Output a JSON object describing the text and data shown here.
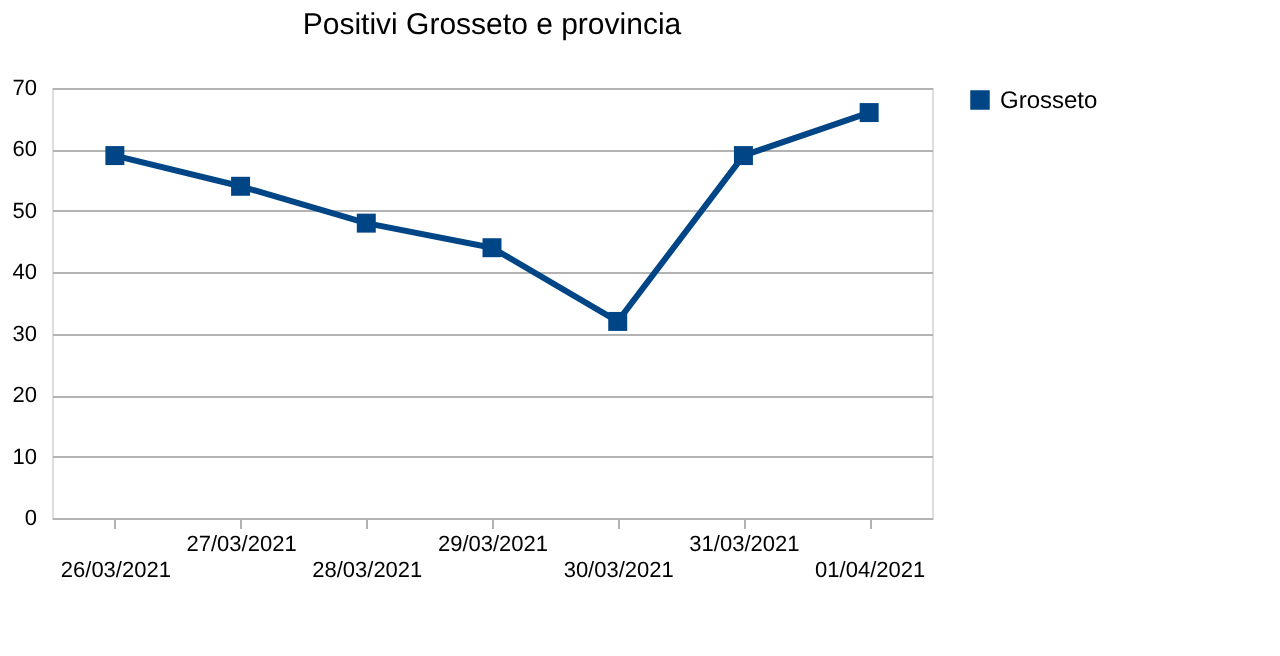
{
  "chart_data": {
    "type": "line",
    "title": "Positivi Grosseto e provincia",
    "categories": [
      "26/03/2021",
      "27/03/2021",
      "28/03/2021",
      "29/03/2021",
      "30/03/2021",
      "31/03/2021",
      "01/04/2021"
    ],
    "series": [
      {
        "name": "Grosseto",
        "color": "#004586",
        "values": [
          59,
          54,
          48,
          44,
          32,
          59,
          66
        ]
      }
    ],
    "ylim": [
      0,
      70
    ],
    "yticks": [
      0,
      10,
      20,
      30,
      40,
      50,
      60,
      70
    ],
    "grid": "y",
    "legend": "right",
    "marker": "square",
    "line_style": "solid"
  }
}
